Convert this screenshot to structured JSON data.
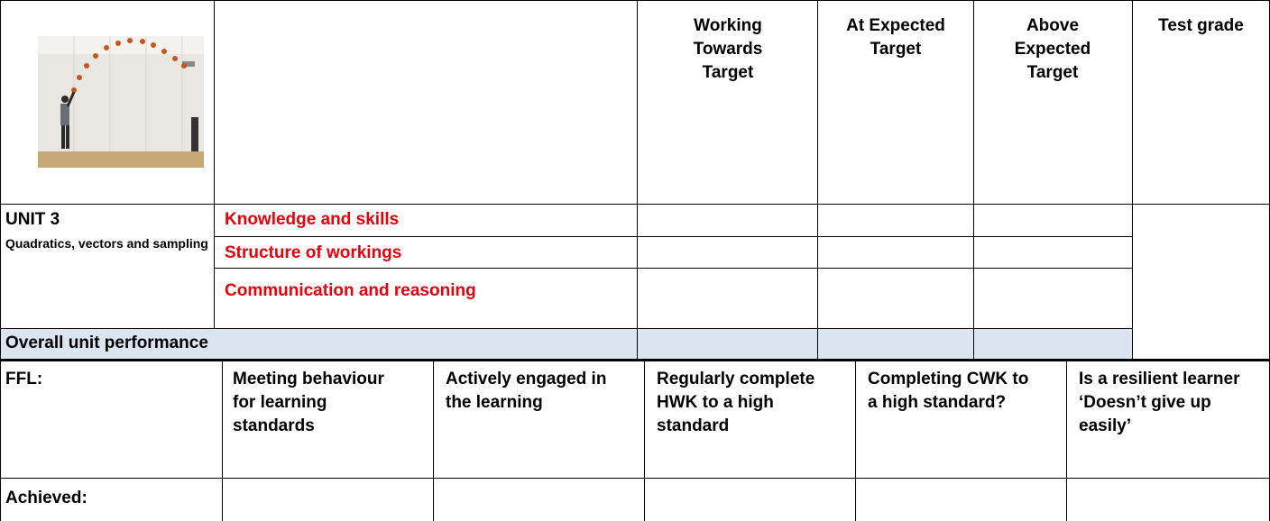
{
  "header": {
    "columns": [
      "Working Towards Target",
      "At Expected Target",
      "Above Expected Target",
      "Test grade"
    ]
  },
  "unit": {
    "title": "UNIT 3",
    "subtitle": "Quadratics, vectors and sampling",
    "criteria": [
      "Knowledge and skills",
      "Structure of workings",
      "Communication and reasoning"
    ]
  },
  "overall": "Overall unit performance",
  "ffl": {
    "label": "FFL:",
    "items": [
      "Meeting behaviour for learning standards",
      "Actively engaged in the learning",
      "Regularly complete HWK to a high standard",
      "Completing CWK to a high standard?",
      "Is a resilient learner ‘Doesn’t give up easily’"
    ]
  },
  "achieved": "Achieved:"
}
